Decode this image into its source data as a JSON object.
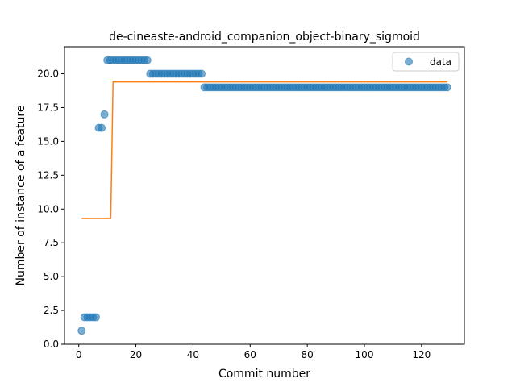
{
  "chart_data": {
    "type": "scatter",
    "title": "de-cineaste-android_companion_object-binary_sigmoid",
    "xlabel": "Commit number",
    "ylabel": "Number of instance of a feature",
    "xlim": [
      -5,
      135
    ],
    "ylim": [
      0,
      22
    ],
    "xticks": [
      "0",
      "20",
      "40",
      "60",
      "80",
      "100",
      "120"
    ],
    "yticks": [
      "0.0",
      "2.5",
      "5.0",
      "7.5",
      "10.0",
      "12.5",
      "15.0",
      "17.5",
      "20.0"
    ],
    "legend": {
      "position": "top-right",
      "entries": [
        "data"
      ]
    },
    "grid": false,
    "colors": {
      "data": "#1f77b4",
      "fit": "#ff7f0e"
    },
    "series": [
      {
        "name": "data",
        "kind": "scatter",
        "points": [
          [
            1,
            1
          ],
          [
            2,
            2
          ],
          [
            3,
            2
          ],
          [
            4,
            2
          ],
          [
            5,
            2
          ],
          [
            6,
            2
          ],
          [
            7,
            16
          ],
          [
            8,
            16
          ],
          [
            9,
            17
          ],
          [
            10,
            21
          ],
          [
            11,
            21
          ],
          [
            12,
            21
          ],
          [
            13,
            21
          ],
          [
            14,
            21
          ],
          [
            15,
            21
          ],
          [
            16,
            21
          ],
          [
            17,
            21
          ],
          [
            18,
            21
          ],
          [
            19,
            21
          ],
          [
            20,
            21
          ],
          [
            21,
            21
          ],
          [
            22,
            21
          ],
          [
            23,
            21
          ],
          [
            24,
            21
          ],
          [
            25,
            20
          ],
          [
            26,
            20
          ],
          [
            27,
            20
          ],
          [
            28,
            20
          ],
          [
            29,
            20
          ],
          [
            30,
            20
          ],
          [
            31,
            20
          ],
          [
            32,
            20
          ],
          [
            33,
            20
          ],
          [
            34,
            20
          ],
          [
            35,
            20
          ],
          [
            36,
            20
          ],
          [
            37,
            20
          ],
          [
            38,
            20
          ],
          [
            39,
            20
          ],
          [
            40,
            20
          ],
          [
            41,
            20
          ],
          [
            42,
            20
          ],
          [
            43,
            20
          ],
          [
            44,
            19
          ],
          [
            45,
            19
          ],
          [
            46,
            19
          ],
          [
            47,
            19
          ],
          [
            48,
            19
          ],
          [
            49,
            19
          ],
          [
            50,
            19
          ],
          [
            51,
            19
          ],
          [
            52,
            19
          ],
          [
            53,
            19
          ],
          [
            54,
            19
          ],
          [
            55,
            19
          ],
          [
            56,
            19
          ],
          [
            57,
            19
          ],
          [
            58,
            19
          ],
          [
            59,
            19
          ],
          [
            60,
            19
          ],
          [
            61,
            19
          ],
          [
            62,
            19
          ],
          [
            63,
            19
          ],
          [
            64,
            19
          ],
          [
            65,
            19
          ],
          [
            66,
            19
          ],
          [
            67,
            19
          ],
          [
            68,
            19
          ],
          [
            69,
            19
          ],
          [
            70,
            19
          ],
          [
            71,
            19
          ],
          [
            72,
            19
          ],
          [
            73,
            19
          ],
          [
            74,
            19
          ],
          [
            75,
            19
          ],
          [
            76,
            19
          ],
          [
            77,
            19
          ],
          [
            78,
            19
          ],
          [
            79,
            19
          ],
          [
            80,
            19
          ],
          [
            81,
            19
          ],
          [
            82,
            19
          ],
          [
            83,
            19
          ],
          [
            84,
            19
          ],
          [
            85,
            19
          ],
          [
            86,
            19
          ],
          [
            87,
            19
          ],
          [
            88,
            19
          ],
          [
            89,
            19
          ],
          [
            90,
            19
          ],
          [
            91,
            19
          ],
          [
            92,
            19
          ],
          [
            93,
            19
          ],
          [
            94,
            19
          ],
          [
            95,
            19
          ],
          [
            96,
            19
          ],
          [
            97,
            19
          ],
          [
            98,
            19
          ],
          [
            99,
            19
          ],
          [
            100,
            19
          ],
          [
            101,
            19
          ],
          [
            102,
            19
          ],
          [
            103,
            19
          ],
          [
            104,
            19
          ],
          [
            105,
            19
          ],
          [
            106,
            19
          ],
          [
            107,
            19
          ],
          [
            108,
            19
          ],
          [
            109,
            19
          ],
          [
            110,
            19
          ],
          [
            111,
            19
          ],
          [
            112,
            19
          ],
          [
            113,
            19
          ],
          [
            114,
            19
          ],
          [
            115,
            19
          ],
          [
            116,
            19
          ],
          [
            117,
            19
          ],
          [
            118,
            19
          ],
          [
            119,
            19
          ],
          [
            120,
            19
          ],
          [
            121,
            19
          ],
          [
            122,
            19
          ],
          [
            123,
            19
          ],
          [
            124,
            19
          ],
          [
            125,
            19
          ],
          [
            126,
            19
          ],
          [
            127,
            19
          ],
          [
            128,
            19
          ],
          [
            129,
            19
          ]
        ]
      },
      {
        "kind": "line",
        "points": [
          [
            1,
            9.3
          ],
          [
            11.2,
            9.3
          ],
          [
            12,
            19.4
          ],
          [
            129,
            19.4
          ]
        ]
      }
    ]
  }
}
